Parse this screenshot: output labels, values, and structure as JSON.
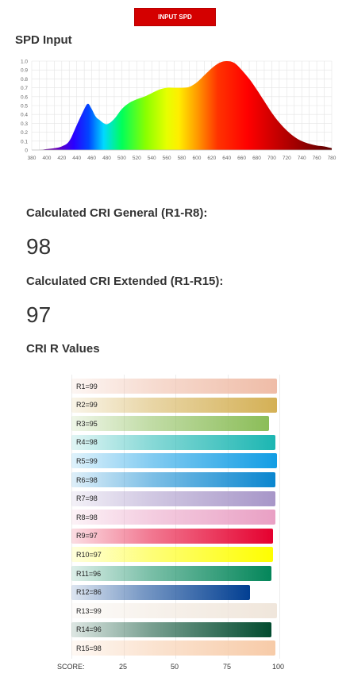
{
  "header": {
    "input_button_label": "INPUT SPD"
  },
  "spd": {
    "title": "SPD Input",
    "chart_data": {
      "type": "area",
      "x": [
        380,
        390,
        400,
        410,
        420,
        430,
        440,
        450,
        455,
        460,
        465,
        470,
        480,
        490,
        500,
        510,
        520,
        530,
        540,
        550,
        560,
        570,
        580,
        590,
        600,
        610,
        620,
        630,
        640,
        650,
        660,
        670,
        680,
        690,
        700,
        710,
        720,
        730,
        740,
        750,
        760,
        770,
        780
      ],
      "y": [
        0.0,
        0.0,
        0.01,
        0.02,
        0.04,
        0.1,
        0.28,
        0.46,
        0.52,
        0.46,
        0.38,
        0.34,
        0.29,
        0.35,
        0.46,
        0.53,
        0.57,
        0.6,
        0.64,
        0.68,
        0.7,
        0.7,
        0.7,
        0.71,
        0.76,
        0.84,
        0.92,
        0.98,
        1.0,
        0.98,
        0.9,
        0.8,
        0.68,
        0.55,
        0.42,
        0.31,
        0.22,
        0.15,
        0.1,
        0.07,
        0.05,
        0.04,
        0.02
      ],
      "xlim": [
        380,
        780
      ],
      "ylim": [
        0,
        1.0
      ],
      "x_ticks": [
        "380",
        "400",
        "420",
        "440",
        "460",
        "480",
        "500",
        "520",
        "540",
        "560",
        "580",
        "600",
        "620",
        "640",
        "660",
        "680",
        "700",
        "720",
        "740",
        "760",
        "780"
      ],
      "y_ticks": [
        "0",
        "0.1",
        "0.2",
        "0.3",
        "0.4",
        "0.5",
        "0.6",
        "0.7",
        "0.8",
        "0.9",
        "1.0"
      ],
      "grid": true,
      "fill": "visible-spectrum gradient"
    }
  },
  "cri_general": {
    "label": "Calculated CRI General (R1-R8):",
    "value": "98"
  },
  "cri_extended": {
    "label": "Calculated CRI Extended (R1-R15):",
    "value": "97"
  },
  "cri_r_values": {
    "title": "CRI R Values",
    "chart_data": {
      "type": "bar",
      "orientation": "horizontal",
      "categories": [
        "R1",
        "R2",
        "R3",
        "R4",
        "R5",
        "R6",
        "R7",
        "R8",
        "R9",
        "R10",
        "R11",
        "R12",
        "R13",
        "R14",
        "R15"
      ],
      "values": [
        99,
        99,
        95,
        98,
        99,
        98,
        98,
        98,
        97,
        97,
        96,
        86,
        99,
        96,
        98
      ],
      "labels": [
        "R1=99",
        "R2=99",
        "R3=95",
        "R4=98",
        "R5=99",
        "R6=98",
        "R7=98",
        "R8=98",
        "R9=97",
        "R10=97",
        "R11=96",
        "R12=86",
        "R13=99",
        "R14=96",
        "R15=98"
      ],
      "colors": [
        "#efbca7",
        "#d4b055",
        "#8bbd58",
        "#1cb6b2",
        "#129de4",
        "#0a86cf",
        "#a796c8",
        "#e9a0c4",
        "#e5002f",
        "#fefe00",
        "#04865a",
        "#023f92",
        "#f0e6db",
        "#024b2f",
        "#f7cba8"
      ],
      "xlim": [
        0,
        100
      ],
      "x_ticks": [
        "25",
        "50",
        "75",
        "100"
      ],
      "axis_label": "SCORE:"
    }
  }
}
